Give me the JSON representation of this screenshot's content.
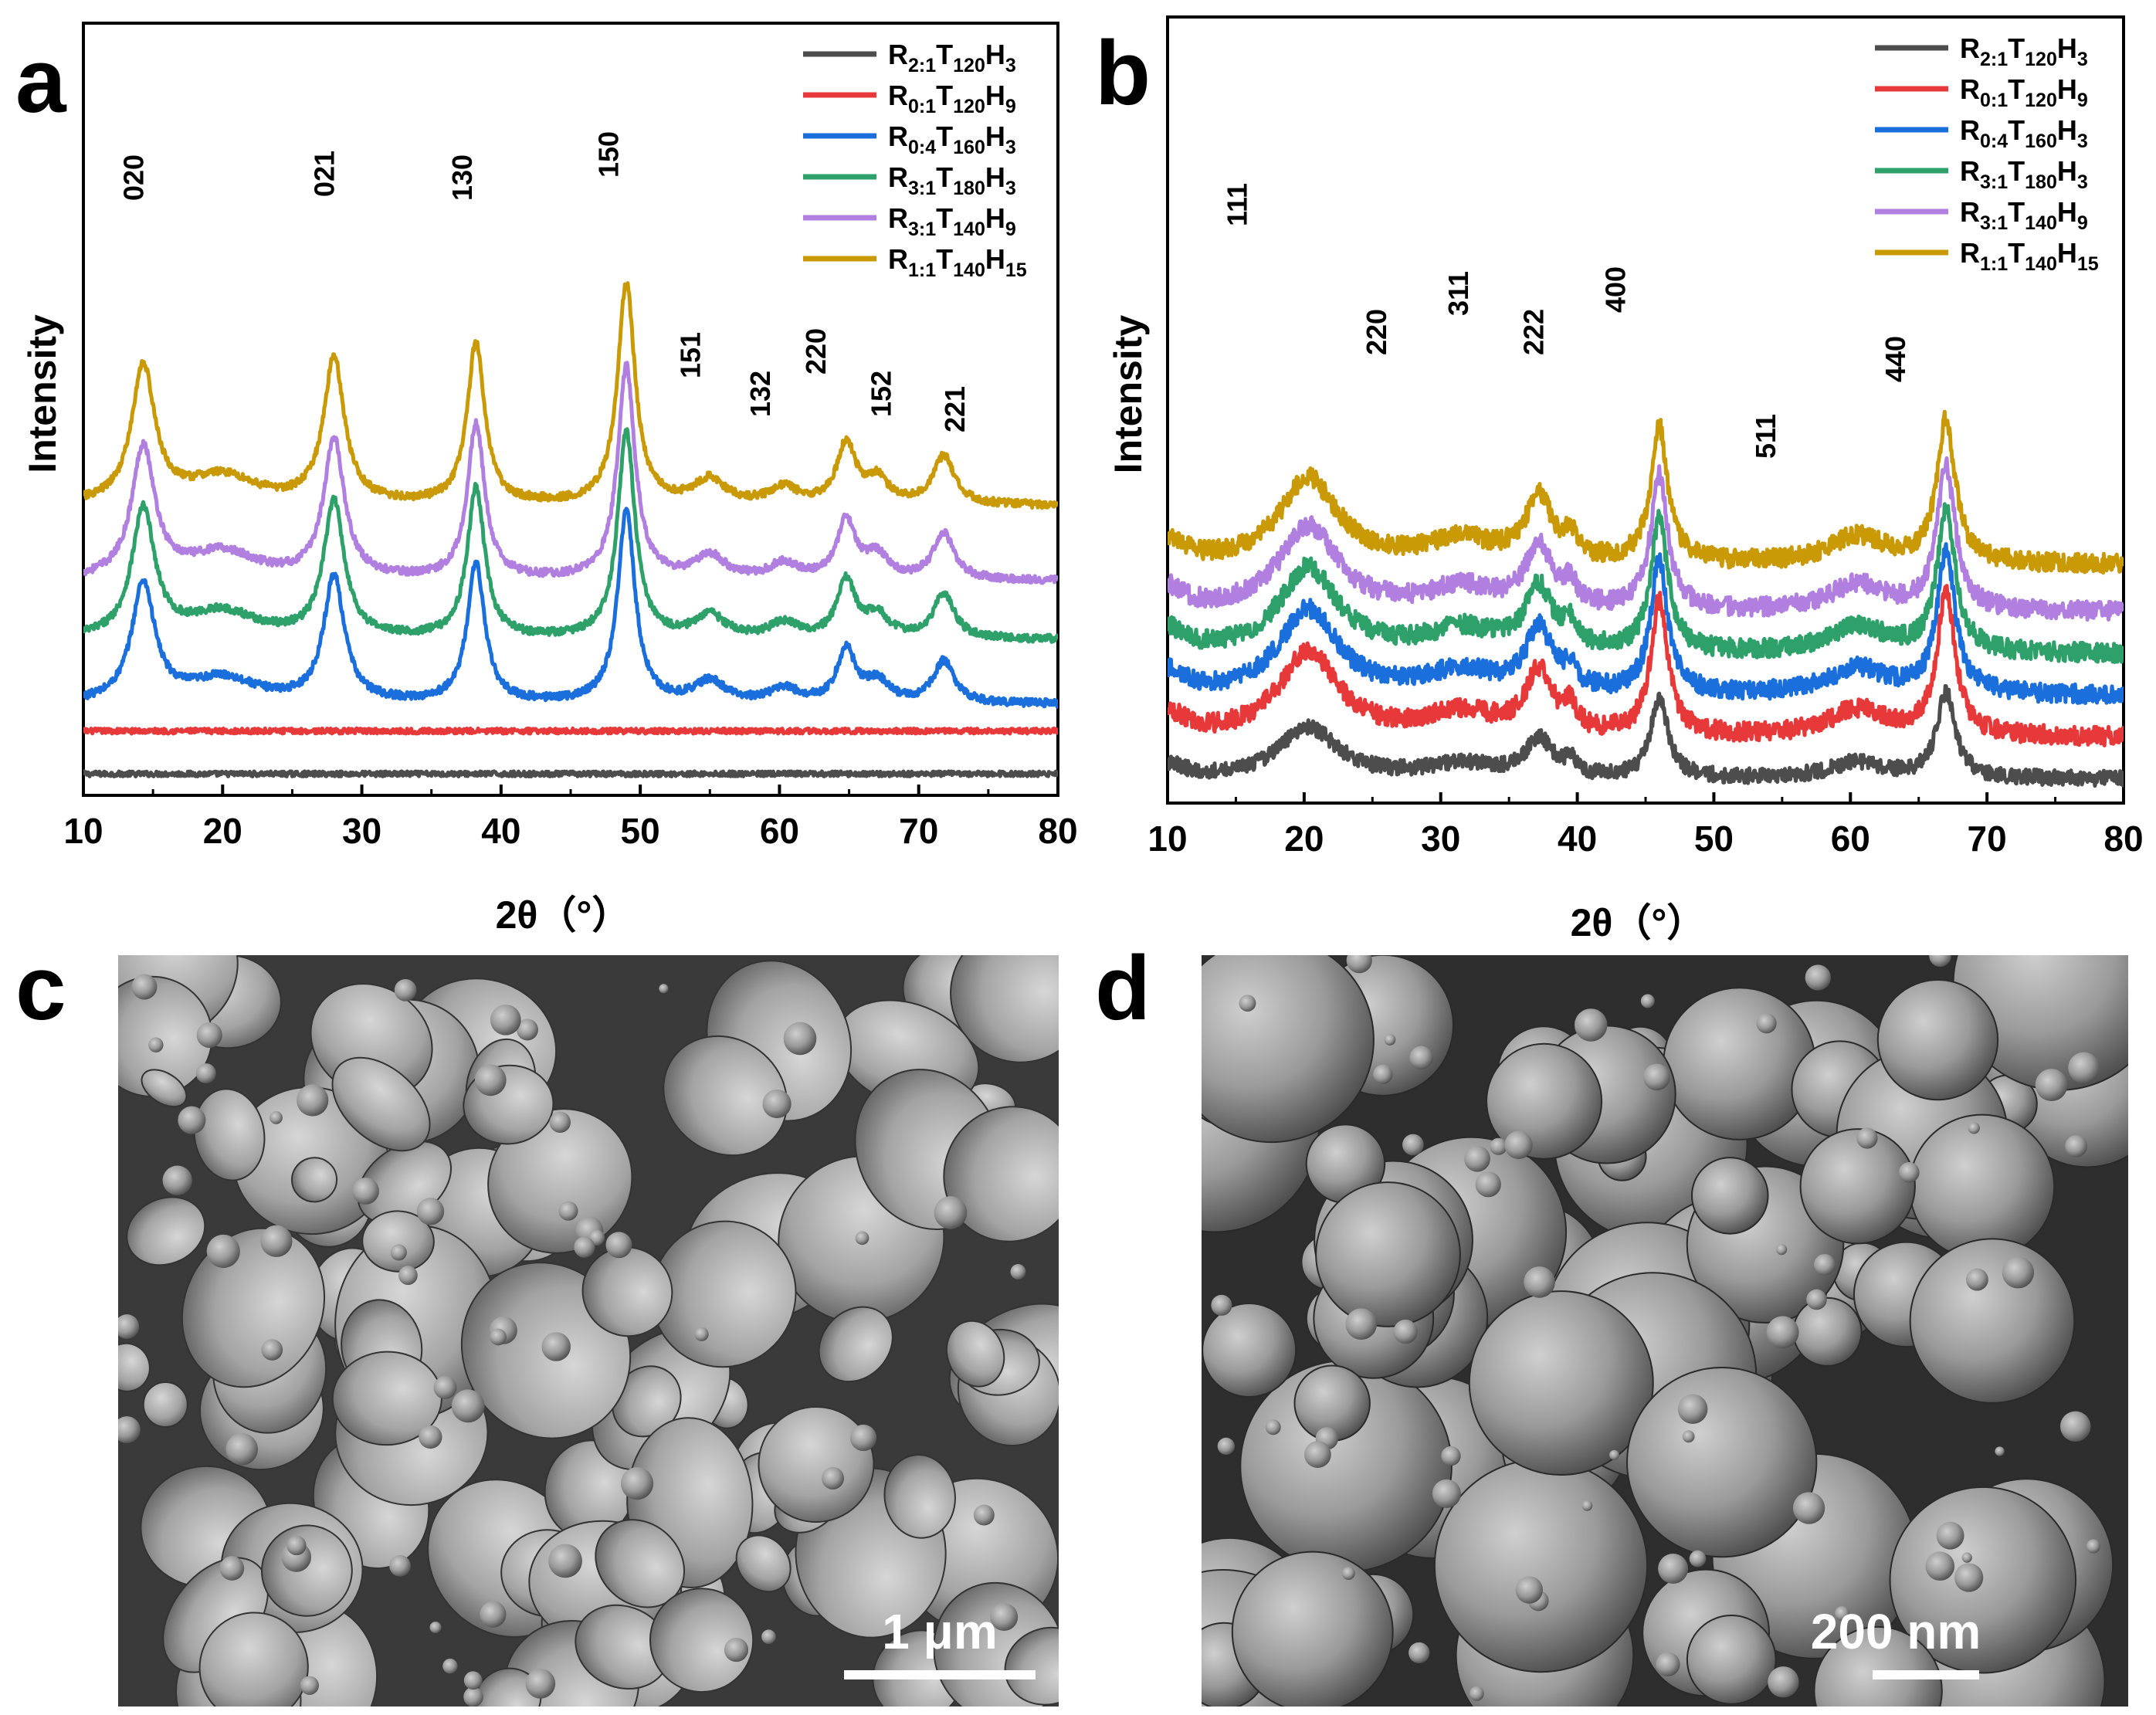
{
  "chart_data": [
    {
      "panel": "a",
      "type": "line",
      "xlabel": "2θ（°）",
      "ylabel": "Intensity",
      "xlim": [
        10,
        80
      ],
      "xticks": [
        10,
        20,
        30,
        40,
        50,
        60,
        70,
        80
      ],
      "series": [
        {
          "name": "R2:1T120H3",
          "label_parts": [
            "R",
            "2:1",
            "T",
            "120",
            "H",
            "3"
          ],
          "color": "#4d4d4d",
          "baseline": 0.02,
          "amp": 0,
          "noise": 0.004
        },
        {
          "name": "R0:1T120H9",
          "label_parts": [
            "R",
            "0:1",
            "T",
            "120",
            "H",
            "9"
          ],
          "color": "#e8393a",
          "baseline": 0.1,
          "amp": 0,
          "noise": 0.004
        },
        {
          "name": "R0:4T160H3",
          "label_parts": [
            "R",
            "0:4",
            "T",
            "160",
            "H",
            "3"
          ],
          "color": "#1b6fdc",
          "baseline": 0.15,
          "amp": 0.65,
          "noise": 0.006
        },
        {
          "name": "R3:1T180H3",
          "label_parts": [
            "R",
            "3:1",
            "T",
            "180",
            "H",
            "3"
          ],
          "color": "#2ea06a",
          "baseline": 0.27,
          "amp": 0.7,
          "noise": 0.006
        },
        {
          "name": "R3:1T140H9",
          "label_parts": [
            "R",
            "3:1",
            "T",
            "140",
            "H",
            "9"
          ],
          "color": "#b07fe0",
          "baseline": 0.38,
          "amp": 0.72,
          "noise": 0.006
        },
        {
          "name": "R1:1T140H15",
          "label_parts": [
            "R",
            "1:1",
            "T",
            "140",
            "H",
            "15"
          ],
          "color": "#c99a06",
          "baseline": 0.52,
          "amp": 0.75,
          "noise": 0.006
        }
      ],
      "peaks": [
        {
          "pos": 14.3,
          "h": 0.34,
          "w": 1.0
        },
        {
          "pos": 20.0,
          "h": 0.07,
          "w": 3.0
        },
        {
          "pos": 28.0,
          "h": 0.36,
          "w": 0.9
        },
        {
          "pos": 38.2,
          "h": 0.4,
          "w": 0.75
        },
        {
          "pos": 49.0,
          "h": 0.55,
          "w": 0.75
        },
        {
          "pos": 55.0,
          "h": 0.06,
          "w": 1.3
        },
        {
          "pos": 60.3,
          "h": 0.04,
          "w": 1.2
        },
        {
          "pos": 64.8,
          "h": 0.15,
          "w": 0.8
        },
        {
          "pos": 67.0,
          "h": 0.06,
          "w": 1.0
        },
        {
          "pos": 71.8,
          "h": 0.12,
          "w": 0.9
        }
      ],
      "peak_labels": [
        {
          "text": "020",
          "x": 14.3
        },
        {
          "text": "021",
          "x": 28.0
        },
        {
          "text": "130",
          "x": 37.9
        },
        {
          "text": "150",
          "x": 48.4
        },
        {
          "text": "151",
          "x": 54.3
        },
        {
          "text": "132",
          "x": 59.3
        },
        {
          "text": "220",
          "x": 63.3
        },
        {
          "text": "152",
          "x": 68.0
        },
        {
          "text": "221",
          "x": 73.3
        }
      ]
    },
    {
      "panel": "b",
      "type": "line",
      "xlabel": "2θ（°）",
      "ylabel": "Intensity",
      "xlim": [
        10,
        80
      ],
      "xticks": [
        10,
        20,
        30,
        40,
        50,
        60,
        70,
        80
      ],
      "series": [
        {
          "name": "R2:1T120H3",
          "label_parts": [
            "R",
            "2:1",
            "T",
            "120",
            "H",
            "3"
          ],
          "color": "#4d4d4d",
          "baseline": 0.02,
          "amp": 0.45,
          "noise": 0.008
        },
        {
          "name": "R0:1T120H9",
          "label_parts": [
            "R",
            "0:1",
            "T",
            "120",
            "H",
            "9"
          ],
          "color": "#e8393a",
          "baseline": 0.09,
          "amp": 0.75,
          "noise": 0.01
        },
        {
          "name": "R0:4T160H3",
          "label_parts": [
            "R",
            "0:4",
            "T",
            "160",
            "H",
            "3"
          ],
          "color": "#1b6fdc",
          "baseline": 0.16,
          "amp": 0.75,
          "noise": 0.01
        },
        {
          "name": "R3:1T180H3",
          "label_parts": [
            "R",
            "3:1",
            "T",
            "180",
            "H",
            "3"
          ],
          "color": "#2ea06a",
          "baseline": 0.23,
          "amp": 0.75,
          "noise": 0.01
        },
        {
          "name": "R3:1T140H9",
          "label_parts": [
            "R",
            "3:1",
            "T",
            "140",
            "H",
            "9"
          ],
          "color": "#b07fe0",
          "baseline": 0.3,
          "amp": 0.75,
          "noise": 0.01
        },
        {
          "name": "R1:1T140H15",
          "label_parts": [
            "R",
            "1:1",
            "T",
            "140",
            "H",
            "15"
          ],
          "color": "#c99a06",
          "baseline": 0.38,
          "amp": 0.75,
          "noise": 0.01
        }
      ],
      "peaks": [
        {
          "pos": 10.0,
          "h": 0.05,
          "w": 1.5
        },
        {
          "pos": 20.3,
          "h": 0.19,
          "w": 2.6
        },
        {
          "pos": 31.5,
          "h": 0.05,
          "w": 3.0
        },
        {
          "pos": 37.2,
          "h": 0.14,
          "w": 1.2
        },
        {
          "pos": 39.5,
          "h": 0.05,
          "w": 0.5
        },
        {
          "pos": 46.0,
          "h": 0.3,
          "w": 0.75
        },
        {
          "pos": 60.5,
          "h": 0.06,
          "w": 2.5
        },
        {
          "pos": 67.0,
          "h": 0.32,
          "w": 0.8
        }
      ],
      "peak_labels": [
        {
          "text": "111",
          "x": 15.8
        },
        {
          "text": "220",
          "x": 26.0
        },
        {
          "text": "311",
          "x": 32.0
        },
        {
          "text": "222",
          "x": 37.5
        },
        {
          "text": "400",
          "x": 43.5
        },
        {
          "text": "511",
          "x": 54.5
        },
        {
          "text": "440",
          "x": 64.0
        }
      ]
    }
  ],
  "panel_labels": {
    "a": "a",
    "b": "b",
    "c": "c",
    "d": "d"
  },
  "sem": {
    "c": {
      "scale_bar": "1 μm"
    },
    "d": {
      "scale_bar": "200 nm"
    }
  }
}
